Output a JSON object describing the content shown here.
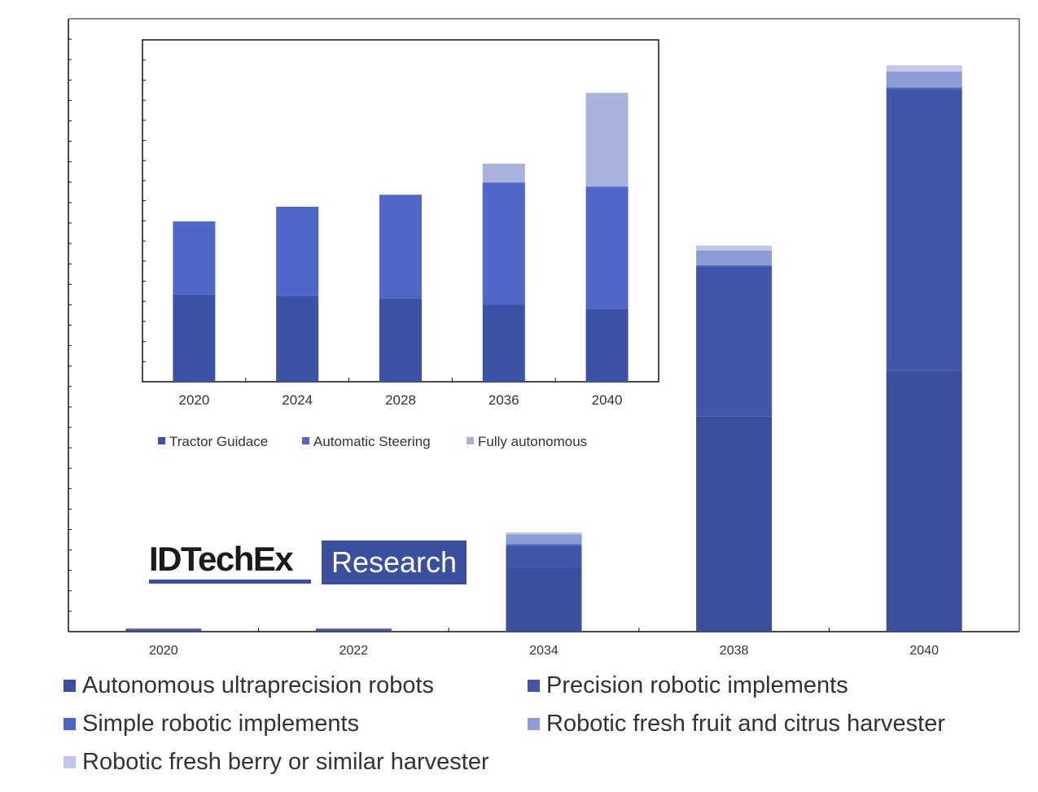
{
  "chart_data": [
    {
      "type": "bar",
      "stacked": true,
      "categories": [
        "2020",
        "2022",
        "2034",
        "2038",
        "2040"
      ],
      "ylim": [
        0,
        100
      ],
      "series": [
        {
          "name": "Autonomous ultraprecision robots",
          "color": "#3b4f9e",
          "values": [
            0.3,
            0.3,
            10.5,
            35.1,
            42.6
          ]
        },
        {
          "name": "Precision robotic implements",
          "color": "#4156a8",
          "values": [
            0.2,
            0.2,
            3.5,
            24.4,
            45.9
          ]
        },
        {
          "name": "Simple robotic implements",
          "color": "#4c65c5",
          "values": [
            0,
            0,
            0.3,
            0.3,
            0.3
          ]
        },
        {
          "name": "Robotic fresh fruit and citrus harvester",
          "color": "#8e9cd6",
          "values": [
            0,
            0,
            1.6,
            2.4,
            2.6
          ]
        },
        {
          "name": "Robotic fresh berry or similar harvester",
          "color": "#c0c8ea",
          "values": [
            0,
            0,
            0.3,
            0.8,
            1.0
          ]
        }
      ],
      "xlabel": "",
      "ylabel": "",
      "legend": "bottom",
      "grid": false
    },
    {
      "type": "bar",
      "stacked": true,
      "categories": [
        "2020",
        "2024",
        "2028",
        "2036",
        "2040"
      ],
      "ylim": [
        0,
        100
      ],
      "series": [
        {
          "name": "Tractor Guidace",
          "color": "#3b52a5",
          "values": [
            25.5,
            25.0,
            24.3,
            22.6,
            21.4
          ]
        },
        {
          "name": "Automatic Steering",
          "color": "#4e67c8",
          "values": [
            21.4,
            26.2,
            30.4,
            35.7,
            35.7
          ]
        },
        {
          "name": "Fully autonomous",
          "color": "#a9b2de",
          "values": [
            0,
            0,
            0,
            5.5,
            27.4
          ]
        }
      ],
      "xlabel": "",
      "ylabel": "",
      "legend": "bottom",
      "grid": false
    }
  ],
  "logo": {
    "word": "IDTechEx",
    "box": "Research"
  }
}
